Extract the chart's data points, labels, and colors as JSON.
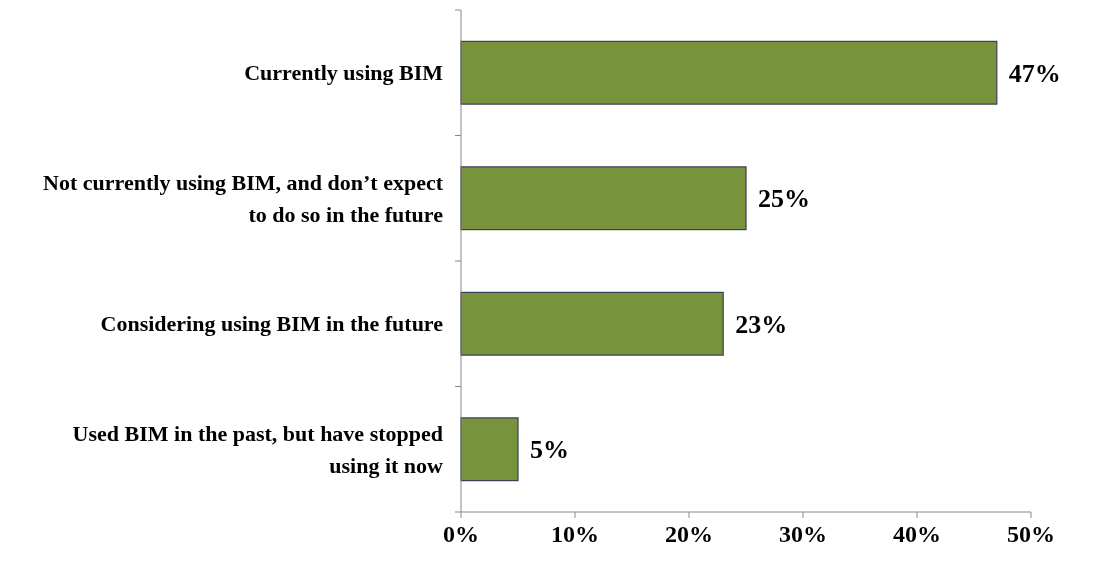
{
  "chart_data": {
    "type": "bar",
    "orientation": "horizontal",
    "categories": [
      "Currently using BIM",
      "Not currently using BIM, and don’t expect to do so in the future",
      "Considering using BIM in the future",
      "Used BIM in the past, but have stopped using it now"
    ],
    "values": [
      47,
      25,
      23,
      5
    ],
    "value_labels": [
      "47%",
      "25%",
      "23%",
      "5%"
    ],
    "color": "#77933c",
    "xlim": [
      0,
      50
    ],
    "xticks": [
      {
        "value": 0,
        "label": "0%"
      },
      {
        "value": 10,
        "label": "10%"
      },
      {
        "value": 20,
        "label": "20%"
      },
      {
        "value": 30,
        "label": "30%"
      },
      {
        "value": 40,
        "label": "40%"
      },
      {
        "value": 50,
        "label": "50%"
      }
    ],
    "grid": false
  }
}
